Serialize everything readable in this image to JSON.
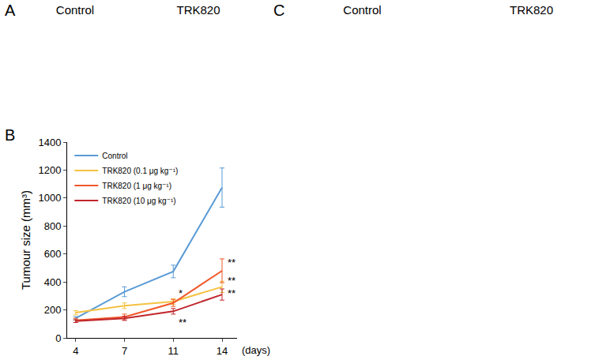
{
  "chart_data": {
    "type": "line",
    "categories": [
      "4",
      "7",
      "11",
      "14"
    ],
    "x_label": "(days)",
    "y_label": "Tumour size (mm³)",
    "ylim": [
      0,
      1400
    ],
    "yticks": [
      0,
      200,
      400,
      600,
      800,
      1000,
      1200,
      1400
    ],
    "grid": false,
    "legend": "top-left",
    "series": [
      {
        "name": "Control",
        "color": "#5b9bd5",
        "line_style": "solid",
        "values": [
          140,
          330,
          475,
          1075
        ],
        "error": [
          12,
          35,
          45,
          140
        ]
      },
      {
        "name": "TRK820 (0.1 μg kg⁻¹)",
        "color": "#f5c242",
        "line_style": "solid",
        "values": [
          180,
          230,
          260,
          365
        ],
        "error": [
          15,
          20,
          20,
          40
        ]
      },
      {
        "name": "TRK820 (1 μg kg⁻¹)",
        "color": "#f0582a",
        "line_style": "solid",
        "values": [
          125,
          150,
          250,
          480
        ],
        "error": [
          15,
          20,
          25,
          85
        ]
      },
      {
        "name": "TRK820 (10 μg kg⁻¹)",
        "color": "#c0262d",
        "line_style": "solid",
        "values": [
          120,
          140,
          190,
          310
        ],
        "error": [
          10,
          15,
          20,
          40
        ]
      }
    ],
    "annotations": [
      {
        "x": "11",
        "y": 320,
        "text": "*"
      },
      {
        "x": "11",
        "y": 110,
        "text": "**"
      },
      {
        "x": "14",
        "y": 540,
        "text": "**"
      },
      {
        "x": "14",
        "y": 410,
        "text": "**"
      },
      {
        "x": "14",
        "y": 320,
        "text": "**"
      }
    ]
  },
  "figure": {
    "A": {
      "label": "A",
      "columns": [
        "Control",
        "TRK820"
      ]
    },
    "B": {
      "label": "B"
    },
    "C": {
      "label": "C",
      "columns": [
        "Control",
        "TRK820"
      ]
    }
  }
}
